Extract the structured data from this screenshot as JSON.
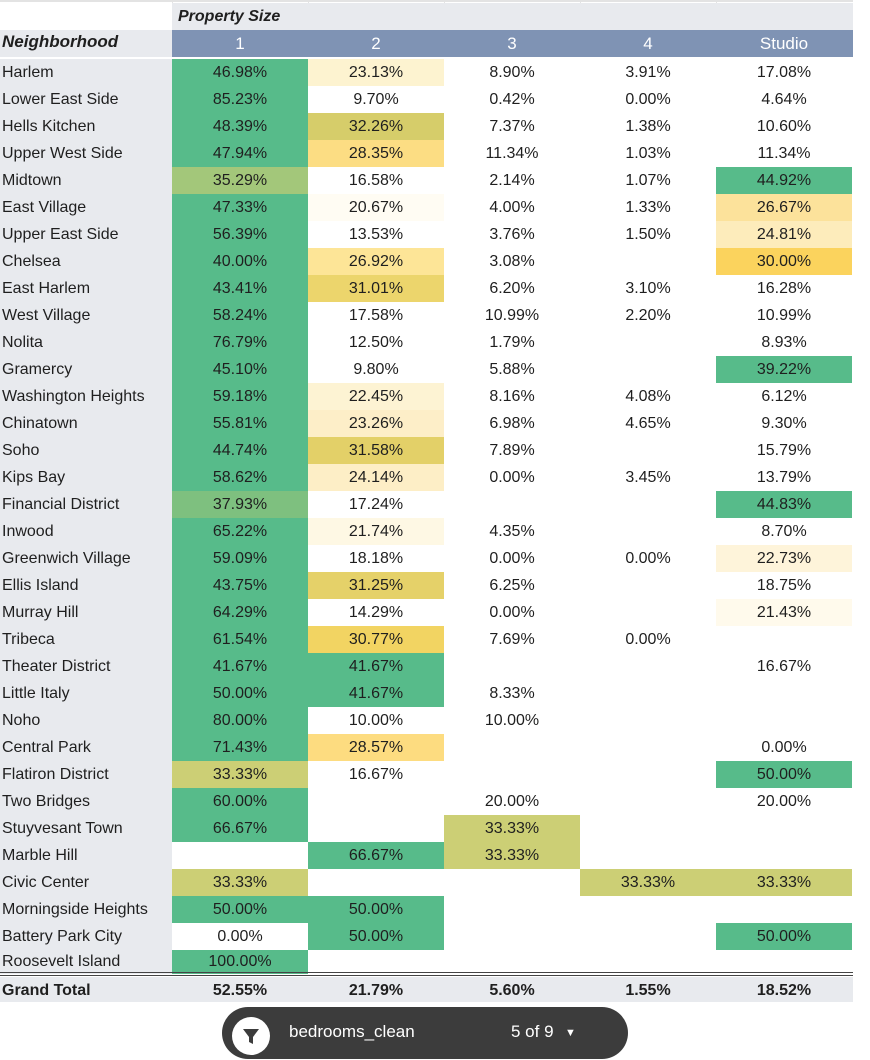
{
  "header": {
    "group_label": "Property Size",
    "row_label": "Neighborhood",
    "columns": [
      "1",
      "2",
      "3",
      "4",
      "Studio"
    ]
  },
  "rows": [
    {
      "name": "Harlem",
      "values": [
        "46.98%",
        "23.13%",
        "8.90%",
        "3.91%",
        "17.08%"
      ],
      "colors": [
        "#57bb8a",
        "#fdf3d0",
        "",
        "",
        ""
      ]
    },
    {
      "name": "Lower East Side",
      "values": [
        "85.23%",
        "9.70%",
        "0.42%",
        "0.00%",
        "4.64%"
      ],
      "colors": [
        "#57bb8a",
        "",
        "",
        "",
        ""
      ]
    },
    {
      "name": "Hells Kitchen",
      "values": [
        "48.39%",
        "32.26%",
        "7.37%",
        "1.38%",
        "10.60%"
      ],
      "colors": [
        "#57bb8a",
        "#d6cd6a",
        "",
        "",
        ""
      ]
    },
    {
      "name": "Upper West Side",
      "values": [
        "47.94%",
        "28.35%",
        "11.34%",
        "1.03%",
        "11.34%"
      ],
      "colors": [
        "#57bb8a",
        "#fcdd83",
        "",
        "",
        ""
      ]
    },
    {
      "name": "Midtown",
      "values": [
        "35.29%",
        "16.58%",
        "2.14%",
        "1.07%",
        "44.92%"
      ],
      "colors": [
        "#a3c77a",
        "",
        "",
        "",
        "#57bb8a"
      ]
    },
    {
      "name": "East Village",
      "values": [
        "47.33%",
        "20.67%",
        "4.00%",
        "1.33%",
        "26.67%"
      ],
      "colors": [
        "#57bb8a",
        "#fffcf3",
        "",
        "",
        "#fce29b"
      ]
    },
    {
      "name": "Upper East Side",
      "values": [
        "56.39%",
        "13.53%",
        "3.76%",
        "1.50%",
        "24.81%"
      ],
      "colors": [
        "#57bb8a",
        "",
        "",
        "",
        "#fdecbb"
      ]
    },
    {
      "name": "Chelsea",
      "values": [
        "40.00%",
        "26.92%",
        "3.08%",
        "",
        "30.00%"
      ],
      "colors": [
        "#57bb8a",
        "#fde597",
        "",
        "",
        "#fbd35d"
      ]
    },
    {
      "name": "East Harlem",
      "values": [
        "43.41%",
        "31.01%",
        "6.20%",
        "3.10%",
        "16.28%"
      ],
      "colors": [
        "#57bb8a",
        "#ecd56c",
        "",
        "",
        ""
      ]
    },
    {
      "name": "West Village",
      "values": [
        "58.24%",
        "17.58%",
        "10.99%",
        "2.20%",
        "10.99%"
      ],
      "colors": [
        "#57bb8a",
        "",
        "",
        "",
        ""
      ]
    },
    {
      "name": "Nolita",
      "values": [
        "76.79%",
        "12.50%",
        "1.79%",
        "",
        "8.93%"
      ],
      "colors": [
        "#57bb8a",
        "",
        "",
        "",
        ""
      ]
    },
    {
      "name": "Gramercy",
      "values": [
        "45.10%",
        "9.80%",
        "5.88%",
        "",
        "39.22%"
      ],
      "colors": [
        "#57bb8a",
        "",
        "",
        "",
        "#57bb8a"
      ]
    },
    {
      "name": "Washington Heights",
      "values": [
        "59.18%",
        "22.45%",
        "8.16%",
        "4.08%",
        "6.12%"
      ],
      "colors": [
        "#57bb8a",
        "#fdf3d3",
        "",
        "",
        ""
      ]
    },
    {
      "name": "Chinatown",
      "values": [
        "55.81%",
        "23.26%",
        "6.98%",
        "4.65%",
        "9.30%"
      ],
      "colors": [
        "#57bb8a",
        "#fdeec8",
        "",
        "",
        ""
      ]
    },
    {
      "name": "Soho",
      "values": [
        "44.74%",
        "31.58%",
        "7.89%",
        "",
        "15.79%"
      ],
      "colors": [
        "#57bb8a",
        "#e3d068",
        "",
        "",
        ""
      ]
    },
    {
      "name": "Kips Bay",
      "values": [
        "58.62%",
        "24.14%",
        "0.00%",
        "3.45%",
        "13.79%"
      ],
      "colors": [
        "#57bb8a",
        "#fdeec6",
        "",
        "",
        ""
      ]
    },
    {
      "name": "Financial District",
      "values": [
        "37.93%",
        "17.24%",
        "",
        "",
        "44.83%"
      ],
      "colors": [
        "#7ec07f",
        "",
        "",
        "",
        "#57bb8a"
      ]
    },
    {
      "name": "Inwood",
      "values": [
        "65.22%",
        "21.74%",
        "4.35%",
        "",
        "8.70%"
      ],
      "colors": [
        "#57bb8a",
        "#fef8e4",
        "",
        "",
        ""
      ]
    },
    {
      "name": "Greenwich Village",
      "values": [
        "59.09%",
        "18.18%",
        "0.00%",
        "0.00%",
        "22.73%"
      ],
      "colors": [
        "#57bb8a",
        "",
        "",
        "",
        "#fef4da"
      ]
    },
    {
      "name": "Ellis Island",
      "values": [
        "43.75%",
        "31.25%",
        "6.25%",
        "",
        "18.75%"
      ],
      "colors": [
        "#57bb8a",
        "#e5d169",
        "",
        "",
        ""
      ]
    },
    {
      "name": "Murray Hill",
      "values": [
        "64.29%",
        "14.29%",
        "0.00%",
        "",
        "21.43%"
      ],
      "colors": [
        "#57bb8a",
        "",
        "",
        "",
        "#fffaec"
      ]
    },
    {
      "name": "Tribeca",
      "values": [
        "61.54%",
        "30.77%",
        "7.69%",
        "0.00%",
        ""
      ],
      "colors": [
        "#57bb8a",
        "#f2d462",
        "",
        "",
        ""
      ]
    },
    {
      "name": "Theater District",
      "values": [
        "41.67%",
        "41.67%",
        "",
        "",
        "16.67%"
      ],
      "colors": [
        "#57bb8a",
        "#57bb8a",
        "",
        "",
        ""
      ]
    },
    {
      "name": "Little Italy",
      "values": [
        "50.00%",
        "41.67%",
        "8.33%",
        "",
        ""
      ],
      "colors": [
        "#57bb8a",
        "#57bb8a",
        "",
        "",
        ""
      ]
    },
    {
      "name": "Noho",
      "values": [
        "80.00%",
        "10.00%",
        "10.00%",
        "",
        ""
      ],
      "colors": [
        "#57bb8a",
        "",
        "",
        "",
        ""
      ]
    },
    {
      "name": "Central Park",
      "values": [
        "71.43%",
        "28.57%",
        "",
        "",
        "0.00%"
      ],
      "colors": [
        "#57bb8a",
        "#fddc80",
        "",
        "",
        ""
      ]
    },
    {
      "name": "Flatiron District",
      "values": [
        "33.33%",
        "16.67%",
        "",
        "",
        "50.00%"
      ],
      "colors": [
        "#cccf75",
        "",
        "",
        "",
        "#57bb8a"
      ]
    },
    {
      "name": "Two Bridges",
      "values": [
        "60.00%",
        "",
        "20.00%",
        "",
        "20.00%"
      ],
      "colors": [
        "#57bb8a",
        "",
        "",
        "",
        ""
      ]
    },
    {
      "name": "Stuyvesant Town",
      "values": [
        "66.67%",
        "",
        "33.33%",
        "",
        ""
      ],
      "colors": [
        "#57bb8a",
        "",
        "#cccf75",
        "",
        ""
      ]
    },
    {
      "name": "Marble Hill",
      "values": [
        "",
        "66.67%",
        "33.33%",
        "",
        ""
      ],
      "colors": [
        "",
        "#57bb8a",
        "#cccf75",
        "",
        ""
      ]
    },
    {
      "name": "Civic Center",
      "values": [
        "33.33%",
        "",
        "",
        "33.33%",
        "33.33%"
      ],
      "colors": [
        "#cccf75",
        "",
        "",
        "#cccf75",
        "#cccf75"
      ]
    },
    {
      "name": "Morningside Heights",
      "values": [
        "50.00%",
        "50.00%",
        "",
        "",
        ""
      ],
      "colors": [
        "#57bb8a",
        "#57bb8a",
        "",
        "",
        ""
      ]
    },
    {
      "name": "Battery Park City",
      "values": [
        "0.00%",
        "50.00%",
        "",
        "",
        "50.00%"
      ],
      "colors": [
        "",
        "#57bb8a",
        "",
        "",
        "#57bb8a"
      ]
    },
    {
      "name": "Roosevelt Island",
      "values": [
        "100.00%",
        "",
        "",
        "",
        ""
      ],
      "colors": [
        "#57bb8a",
        "",
        "",
        "",
        ""
      ]
    }
  ],
  "grand_total": {
    "label": "Grand Total",
    "values": [
      "52.55%",
      "21.79%",
      "5.60%",
      "1.55%",
      "18.52%"
    ]
  },
  "filter_bar": {
    "icon": "filter-icon",
    "label": "bedrooms_clean",
    "count": "5 of 9",
    "caret_icon": "caret-down-icon"
  }
}
